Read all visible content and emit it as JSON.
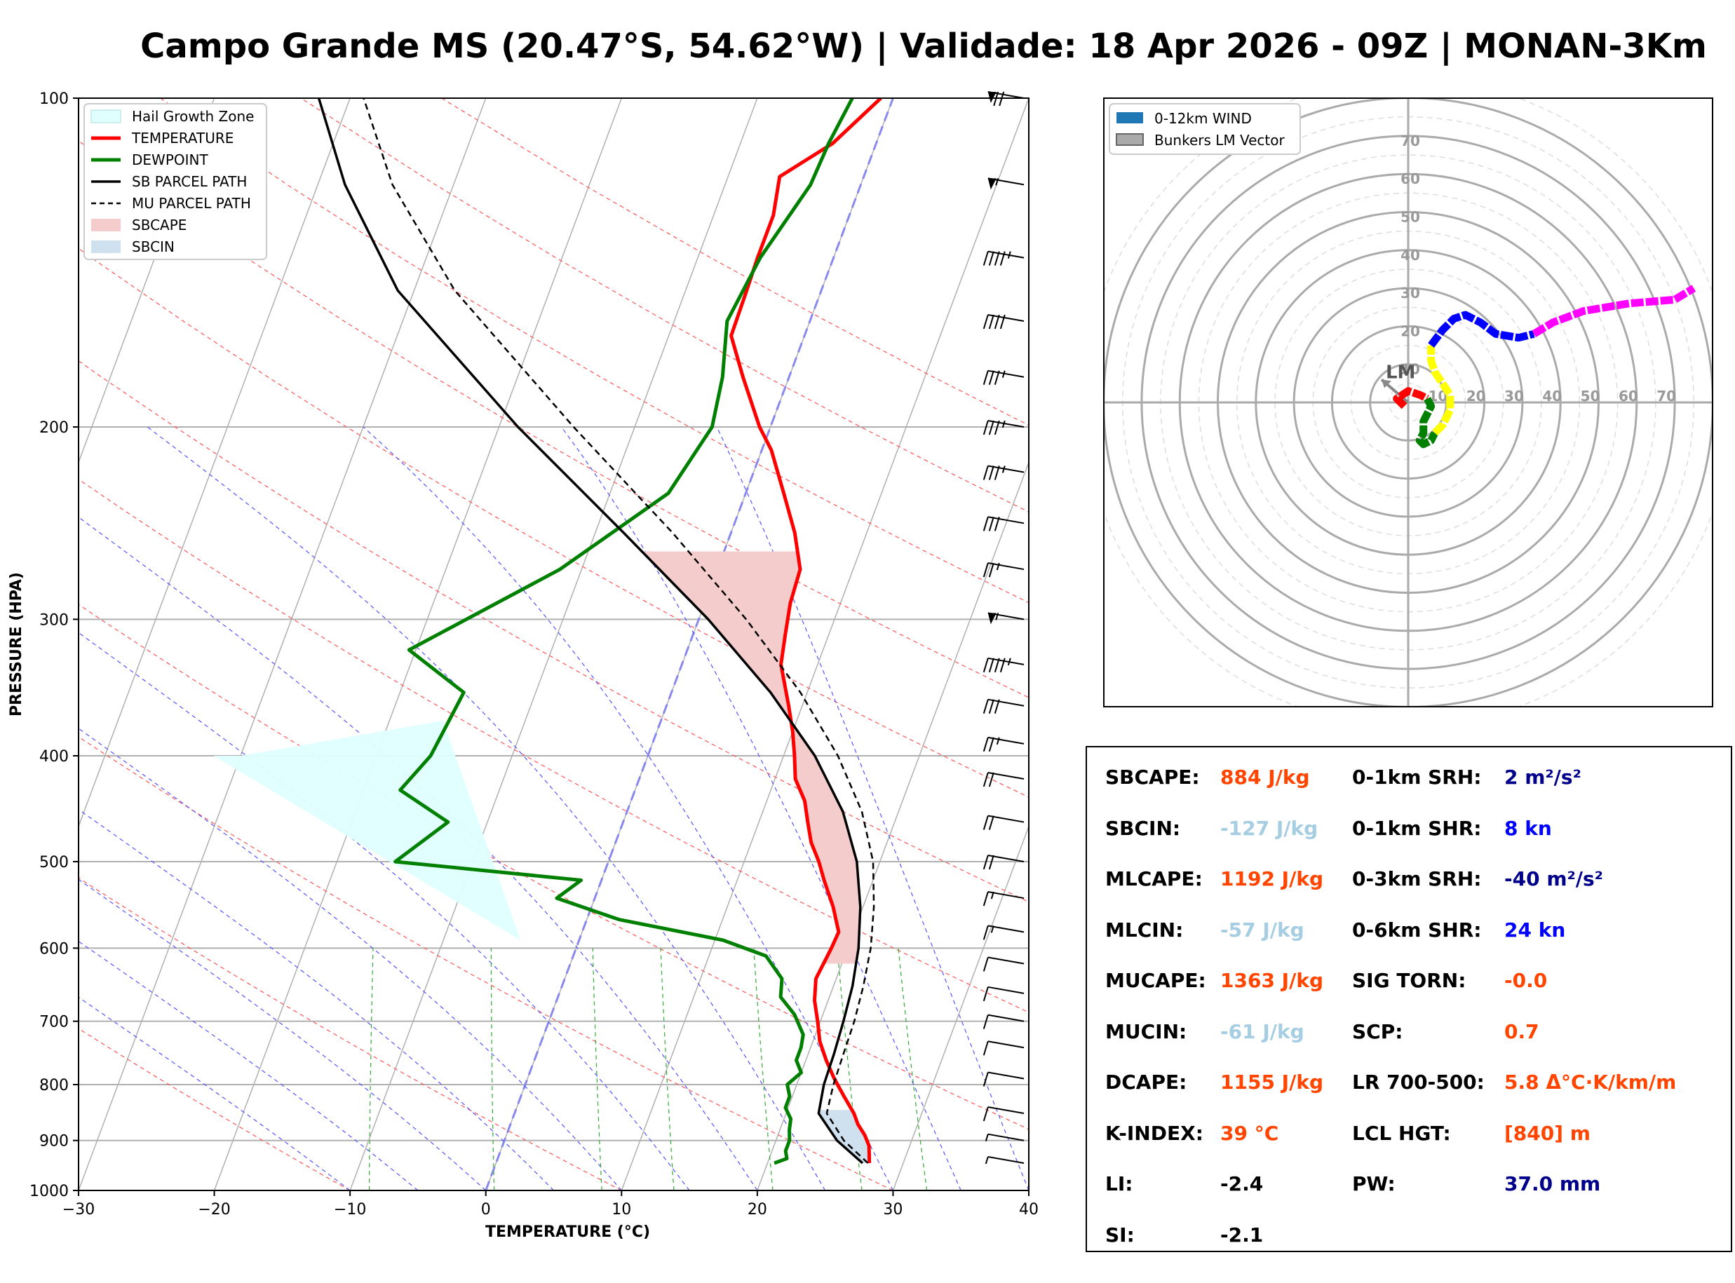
{
  "title": "Campo Grande MS (20.47°S, 54.62°W) | Validade: 18 Apr 2026 - 09Z | MONAN-3Km",
  "colors": {
    "temperature": "#ff0000",
    "dewpoint": "#008000",
    "parcel": "#000000",
    "sbcape": "#f4cccc",
    "sbcin": "#cfe0ef",
    "hail": "#e0ffff",
    "orange": "#ff4500",
    "lightblue": "#a6cee3",
    "navy": "#00008b",
    "blue": "#0000ff"
  },
  "chart_data": [
    {
      "type": "line",
      "subtype": "skew-t",
      "xlabel": "TEMPERATURE (°C)",
      "ylabel": "PRESSURE (HPA)",
      "xlim": [
        -30,
        40
      ],
      "ylim": [
        1000,
        100
      ],
      "x_ticks": [
        "−30",
        "−20",
        "−10",
        "0",
        "10",
        "20",
        "30",
        "40"
      ],
      "x_tick_values": [
        -30,
        -20,
        -10,
        0,
        10,
        20,
        30,
        40
      ],
      "y_ticks": [
        "100",
        "200",
        "300",
        "400",
        "500",
        "600",
        "700",
        "800",
        "900",
        "1000"
      ],
      "y_tick_values": [
        100,
        200,
        300,
        400,
        500,
        600,
        700,
        800,
        900,
        1000
      ],
      "legend": [
        "Hail Growth Zone",
        "TEMPERATURE",
        "DEWPOINT",
        "SB PARCEL PATH",
        "MU PARCEL PATH",
        "SBCAPE",
        "SBCIN"
      ],
      "legend_position": "top-left",
      "series": [
        {
          "name": "TEMPERATURE",
          "points": [
            [
              944,
              27.5
            ],
            [
              930,
              27.3
            ],
            [
              910,
              27.0
            ],
            [
              890,
              26.4
            ],
            [
              870,
              25.6
            ],
            [
              850,
              25.0
            ],
            [
              820,
              23.8
            ],
            [
              790,
              22.6
            ],
            [
              760,
              21.5
            ],
            [
              730,
              20.5
            ],
            [
              700,
              19.8
            ],
            [
              670,
              19.0
            ],
            [
              640,
              18.5
            ],
            [
              600,
              18.8
            ],
            [
              580,
              18.9
            ],
            [
              550,
              17.8
            ],
            [
              520,
              16.4
            ],
            [
              500,
              15.5
            ],
            [
              480,
              14.4
            ],
            [
              460,
              13.6
            ],
            [
              440,
              12.8
            ],
            [
              420,
              11.5
            ],
            [
              400,
              10.8
            ],
            [
              380,
              10.0
            ],
            [
              360,
              9.0
            ],
            [
              330,
              7.3
            ],
            [
              310,
              6.8
            ],
            [
              290,
              6.3
            ],
            [
              270,
              6.1
            ],
            [
              250,
              4.7
            ],
            [
              230,
              2.8
            ],
            [
              210,
              0.7
            ],
            [
              200,
              -0.8
            ],
            [
              180,
              -3.4
            ],
            [
              165,
              -5.4
            ],
            [
              150,
              -5.5
            ],
            [
              140,
              -5.6
            ],
            [
              128,
              -5.6
            ],
            [
              118,
              -6.2
            ],
            [
              110,
              -3.2
            ],
            [
              100,
              -0.9
            ]
          ]
        },
        {
          "name": "DEWPOINT",
          "points": [
            [
              944,
              20.5
            ],
            [
              935,
              21.3
            ],
            [
              920,
              21.0
            ],
            [
              900,
              21.0
            ],
            [
              880,
              20.7
            ],
            [
              860,
              20.5
            ],
            [
              840,
              19.8
            ],
            [
              820,
              19.8
            ],
            [
              800,
              19.3
            ],
            [
              780,
              20.0
            ],
            [
              760,
              19.3
            ],
            [
              740,
              19.3
            ],
            [
              720,
              19.1
            ],
            [
              690,
              17.9
            ],
            [
              665,
              16.4
            ],
            [
              640,
              16.0
            ],
            [
              610,
              14.2
            ],
            [
              590,
              10.6
            ],
            [
              565,
              2.4
            ],
            [
              540,
              -2.8
            ],
            [
              520,
              -1.5
            ],
            [
              500,
              -15.7
            ],
            [
              460,
              -12.9
            ],
            [
              430,
              -17.3
            ],
            [
              400,
              -16.0
            ],
            [
              350,
              -15.3
            ],
            [
              320,
              -20.5
            ],
            [
              270,
              -11.6
            ],
            [
              230,
              -5.7
            ],
            [
              200,
              -4.3
            ],
            [
              180,
              -4.9
            ],
            [
              160,
              -6.1
            ],
            [
              140,
              -5.4
            ],
            [
              120,
              -3.7
            ],
            [
              110,
              -3.5
            ],
            [
              100,
              -3.0
            ]
          ]
        },
        {
          "name": "SB PARCEL PATH",
          "points": [
            [
              944,
              27.0
            ],
            [
              900,
              24.5
            ],
            [
              850,
              22.4
            ],
            [
              800,
              22.0
            ],
            [
              750,
              21.9
            ],
            [
              700,
              21.7
            ],
            [
              650,
              21.4
            ],
            [
              600,
              20.8
            ],
            [
              550,
              19.8
            ],
            [
              500,
              18.3
            ],
            [
              450,
              15.9
            ],
            [
              400,
              12.3
            ],
            [
              350,
              7.3
            ],
            [
              300,
              0.7
            ],
            [
              250,
              -7.9
            ],
            [
              200,
              -18.6
            ],
            [
              150,
              -31.2
            ],
            [
              120,
              -38.0
            ],
            [
              100,
              -42.3
            ]
          ]
        },
        {
          "name": "MU PARCEL PATH",
          "points": [
            [
              944,
              27.4
            ],
            [
              900,
              25.0
            ],
            [
              850,
              23.0
            ],
            [
              800,
              22.7
            ],
            [
              750,
              22.6
            ],
            [
              700,
              22.5
            ],
            [
              650,
              22.2
            ],
            [
              600,
              21.7
            ],
            [
              550,
              20.8
            ],
            [
              500,
              19.5
            ],
            [
              450,
              17.3
            ],
            [
              400,
              14.0
            ],
            [
              350,
              9.5
            ],
            [
              300,
              3.5
            ],
            [
              250,
              -4.3
            ],
            [
              200,
              -14.5
            ],
            [
              150,
              -27.0
            ],
            [
              120,
              -34.5
            ],
            [
              100,
              -39.0
            ]
          ]
        }
      ],
      "hail_growth_zone": {
        "top_hpa": 400,
        "bottom_hpa": 590,
        "temp_top_c": -30,
        "temp_bottom_c": -10
      },
      "sbcape_layer_hpa": [
        260,
        620
      ],
      "sbcin_layer_hpa": [
        840,
        944
      ],
      "wind_barbs": [
        {
          "p": 100,
          "kt": 70
        },
        {
          "p": 120,
          "kt": 55
        },
        {
          "p": 140,
          "kt": 45
        },
        {
          "p": 160,
          "kt": 40
        },
        {
          "p": 180,
          "kt": 35
        },
        {
          "p": 200,
          "kt": 35
        },
        {
          "p": 220,
          "kt": 35
        },
        {
          "p": 245,
          "kt": 30
        },
        {
          "p": 270,
          "kt": 25
        },
        {
          "p": 300,
          "kt": 55
        },
        {
          "p": 330,
          "kt": 45
        },
        {
          "p": 360,
          "kt": 30
        },
        {
          "p": 390,
          "kt": 25
        },
        {
          "p": 420,
          "kt": 20
        },
        {
          "p": 460,
          "kt": 20
        },
        {
          "p": 500,
          "kt": 20
        },
        {
          "p": 540,
          "kt": 15
        },
        {
          "p": 580,
          "kt": 15
        },
        {
          "p": 620,
          "kt": 10
        },
        {
          "p": 660,
          "kt": 10
        },
        {
          "p": 700,
          "kt": 10
        },
        {
          "p": 740,
          "kt": 10
        },
        {
          "p": 790,
          "kt": 10
        },
        {
          "p": 850,
          "kt": 10
        },
        {
          "p": 900,
          "kt": 5
        },
        {
          "p": 944,
          "kt": 5
        }
      ]
    },
    {
      "type": "scatter",
      "subtype": "hodograph",
      "title": "",
      "legend": [
        "0-12km WIND",
        "Bunkers LM Vector"
      ],
      "legend_position": "top-left",
      "ring_labels": [
        "10",
        "20",
        "30",
        "40",
        "50",
        "60",
        "70"
      ],
      "ring_values": [
        10,
        20,
        30,
        40,
        50,
        60,
        70
      ],
      "lm_label": "LM",
      "lm_vector": [
        -7,
        6
      ],
      "segments": [
        {
          "color": "#ff0000",
          "points": [
            [
              -1,
              -1
            ],
            [
              -3,
              1
            ],
            [
              0,
              3
            ],
            [
              3,
              2
            ],
            [
              5,
              1
            ]
          ]
        },
        {
          "color": "#008000",
          "points": [
            [
              5,
              1
            ],
            [
              6,
              -1
            ],
            [
              5,
              -3
            ],
            [
              4,
              -5
            ],
            [
              4,
              -8
            ],
            [
              3,
              -10
            ],
            [
              4,
              -11
            ],
            [
              6,
              -10
            ],
            [
              7,
              -8
            ]
          ]
        },
        {
          "color": "#ffff00",
          "points": [
            [
              7,
              -8
            ],
            [
              9,
              -6
            ],
            [
              11,
              -2
            ],
            [
              11,
              2
            ],
            [
              9,
              5
            ],
            [
              7,
              8
            ],
            [
              6,
              11
            ],
            [
              6,
              15
            ]
          ]
        },
        {
          "color": "#0000ff",
          "points": [
            [
              6,
              15
            ],
            [
              9,
              19
            ],
            [
              12,
              22
            ],
            [
              15,
              23
            ],
            [
              19,
              21
            ],
            [
              23,
              18
            ],
            [
              29,
              17
            ],
            [
              33,
              18
            ]
          ]
        },
        {
          "color": "#ff00ff",
          "points": [
            [
              33,
              18
            ],
            [
              38,
              21
            ],
            [
              46,
              24
            ],
            [
              58,
              26
            ],
            [
              70,
              27
            ],
            [
              75,
              30
            ]
          ]
        }
      ]
    }
  ],
  "params": {
    "left": [
      {
        "label": "SBCAPE:",
        "value": "884 J/kg",
        "color": "#ff4500"
      },
      {
        "label": "SBCIN:",
        "value": "-127 J/kg",
        "color": "#a6cee3"
      },
      {
        "label": "MLCAPE:",
        "value": "1192 J/kg",
        "color": "#ff4500"
      },
      {
        "label": "MLCIN:",
        "value": "-57 J/kg",
        "color": "#a6cee3"
      },
      {
        "label": "MUCAPE:",
        "value": "1363 J/kg",
        "color": "#ff4500"
      },
      {
        "label": "MUCIN:",
        "value": "-61 J/kg",
        "color": "#a6cee3"
      },
      {
        "label": "DCAPE:",
        "value": "1155 J/kg",
        "color": "#ff4500"
      },
      {
        "label": "K-INDEX:",
        "value": "39 °C",
        "color": "#ff4500"
      },
      {
        "label": "LI:",
        "value": "-2.4",
        "color": "#000000"
      },
      {
        "label": "SI:",
        "value": "-2.1",
        "color": "#000000"
      }
    ],
    "right": [
      {
        "label": "0-1km SRH:",
        "value": "2 m²/s²",
        "color": "#00008b"
      },
      {
        "label": "0-1km SHR:",
        "value": "8 kn",
        "color": "#0000ff"
      },
      {
        "label": "0-3km SRH:",
        "value": "-40 m²/s²",
        "color": "#00008b"
      },
      {
        "label": "0-6km SHR:",
        "value": "24 kn",
        "color": "#0000ff"
      },
      {
        "label": "SIG TORN:",
        "value": "-0.0",
        "color": "#ff4500"
      },
      {
        "label": "SCP:",
        "value": "0.7",
        "color": "#ff4500"
      },
      {
        "label": "LR 700-500:",
        "value": "5.8 Δ°C·K/km/m",
        "color": "#ff4500"
      },
      {
        "label": "LCL HGT:",
        "value": "[840] m",
        "color": "#ff4500"
      },
      {
        "label": "PW:",
        "value": "37.0 mm",
        "color": "#00008b"
      }
    ]
  }
}
